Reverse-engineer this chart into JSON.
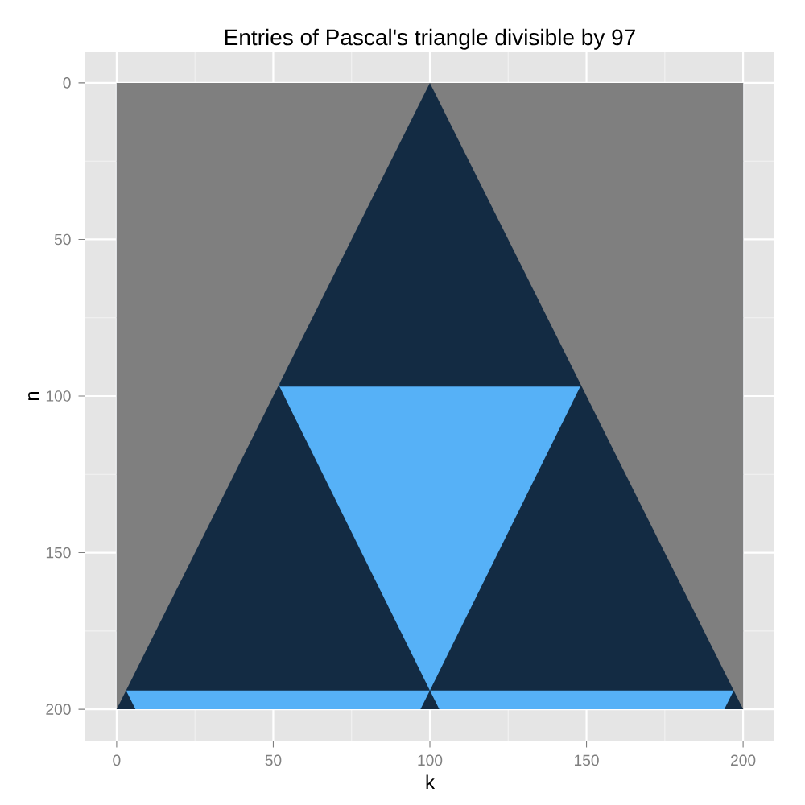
{
  "chart_data": {
    "type": "area",
    "title": "Entries of Pascal's triangle divisible by 97",
    "xlabel": "k",
    "ylabel": "n",
    "series": [
      {
        "color": "#132b43",
        "x": [
          0,
          200
        ],
        "values": [
          200,
          200
        ]
      },
      {
        "color": "#56b1f7",
        "x": [
          3,
          6,
          97,
          100,
          103,
          194,
          197
        ],
        "values": [
          194,
          200,
          200,
          194,
          200,
          200,
          194
        ]
      },
      {
        "color": "#132b43",
        "x": [
          3,
          197
        ],
        "values": [
          194,
          194
        ]
      },
      {
        "color": "#56b1f7",
        "x": [
          52,
          100,
          148
        ],
        "values": [
          97,
          194,
          97
        ]
      },
      {
        "color": "#132b43",
        "x": [
          52,
          148
        ],
        "values": [
          97,
          97
        ]
      },
      {
        "color": "#7f7f7f",
        "x": [
          0,
          25,
          50,
          75,
          100
        ],
        "values": [
          200,
          150,
          100,
          50,
          0
        ]
      },
      {
        "color": "#7f7f7f",
        "x": [
          100,
          125,
          150,
          175,
          200
        ],
        "values": [
          0,
          50,
          100,
          150,
          200
        ]
      }
    ],
    "xlim": [
      -10,
      210
    ],
    "ylim": [
      210,
      -10
    ],
    "xticks": [
      0,
      50,
      100,
      150,
      200
    ],
    "yticks": [
      0,
      50,
      100,
      150,
      200
    ],
    "grid": true
  }
}
